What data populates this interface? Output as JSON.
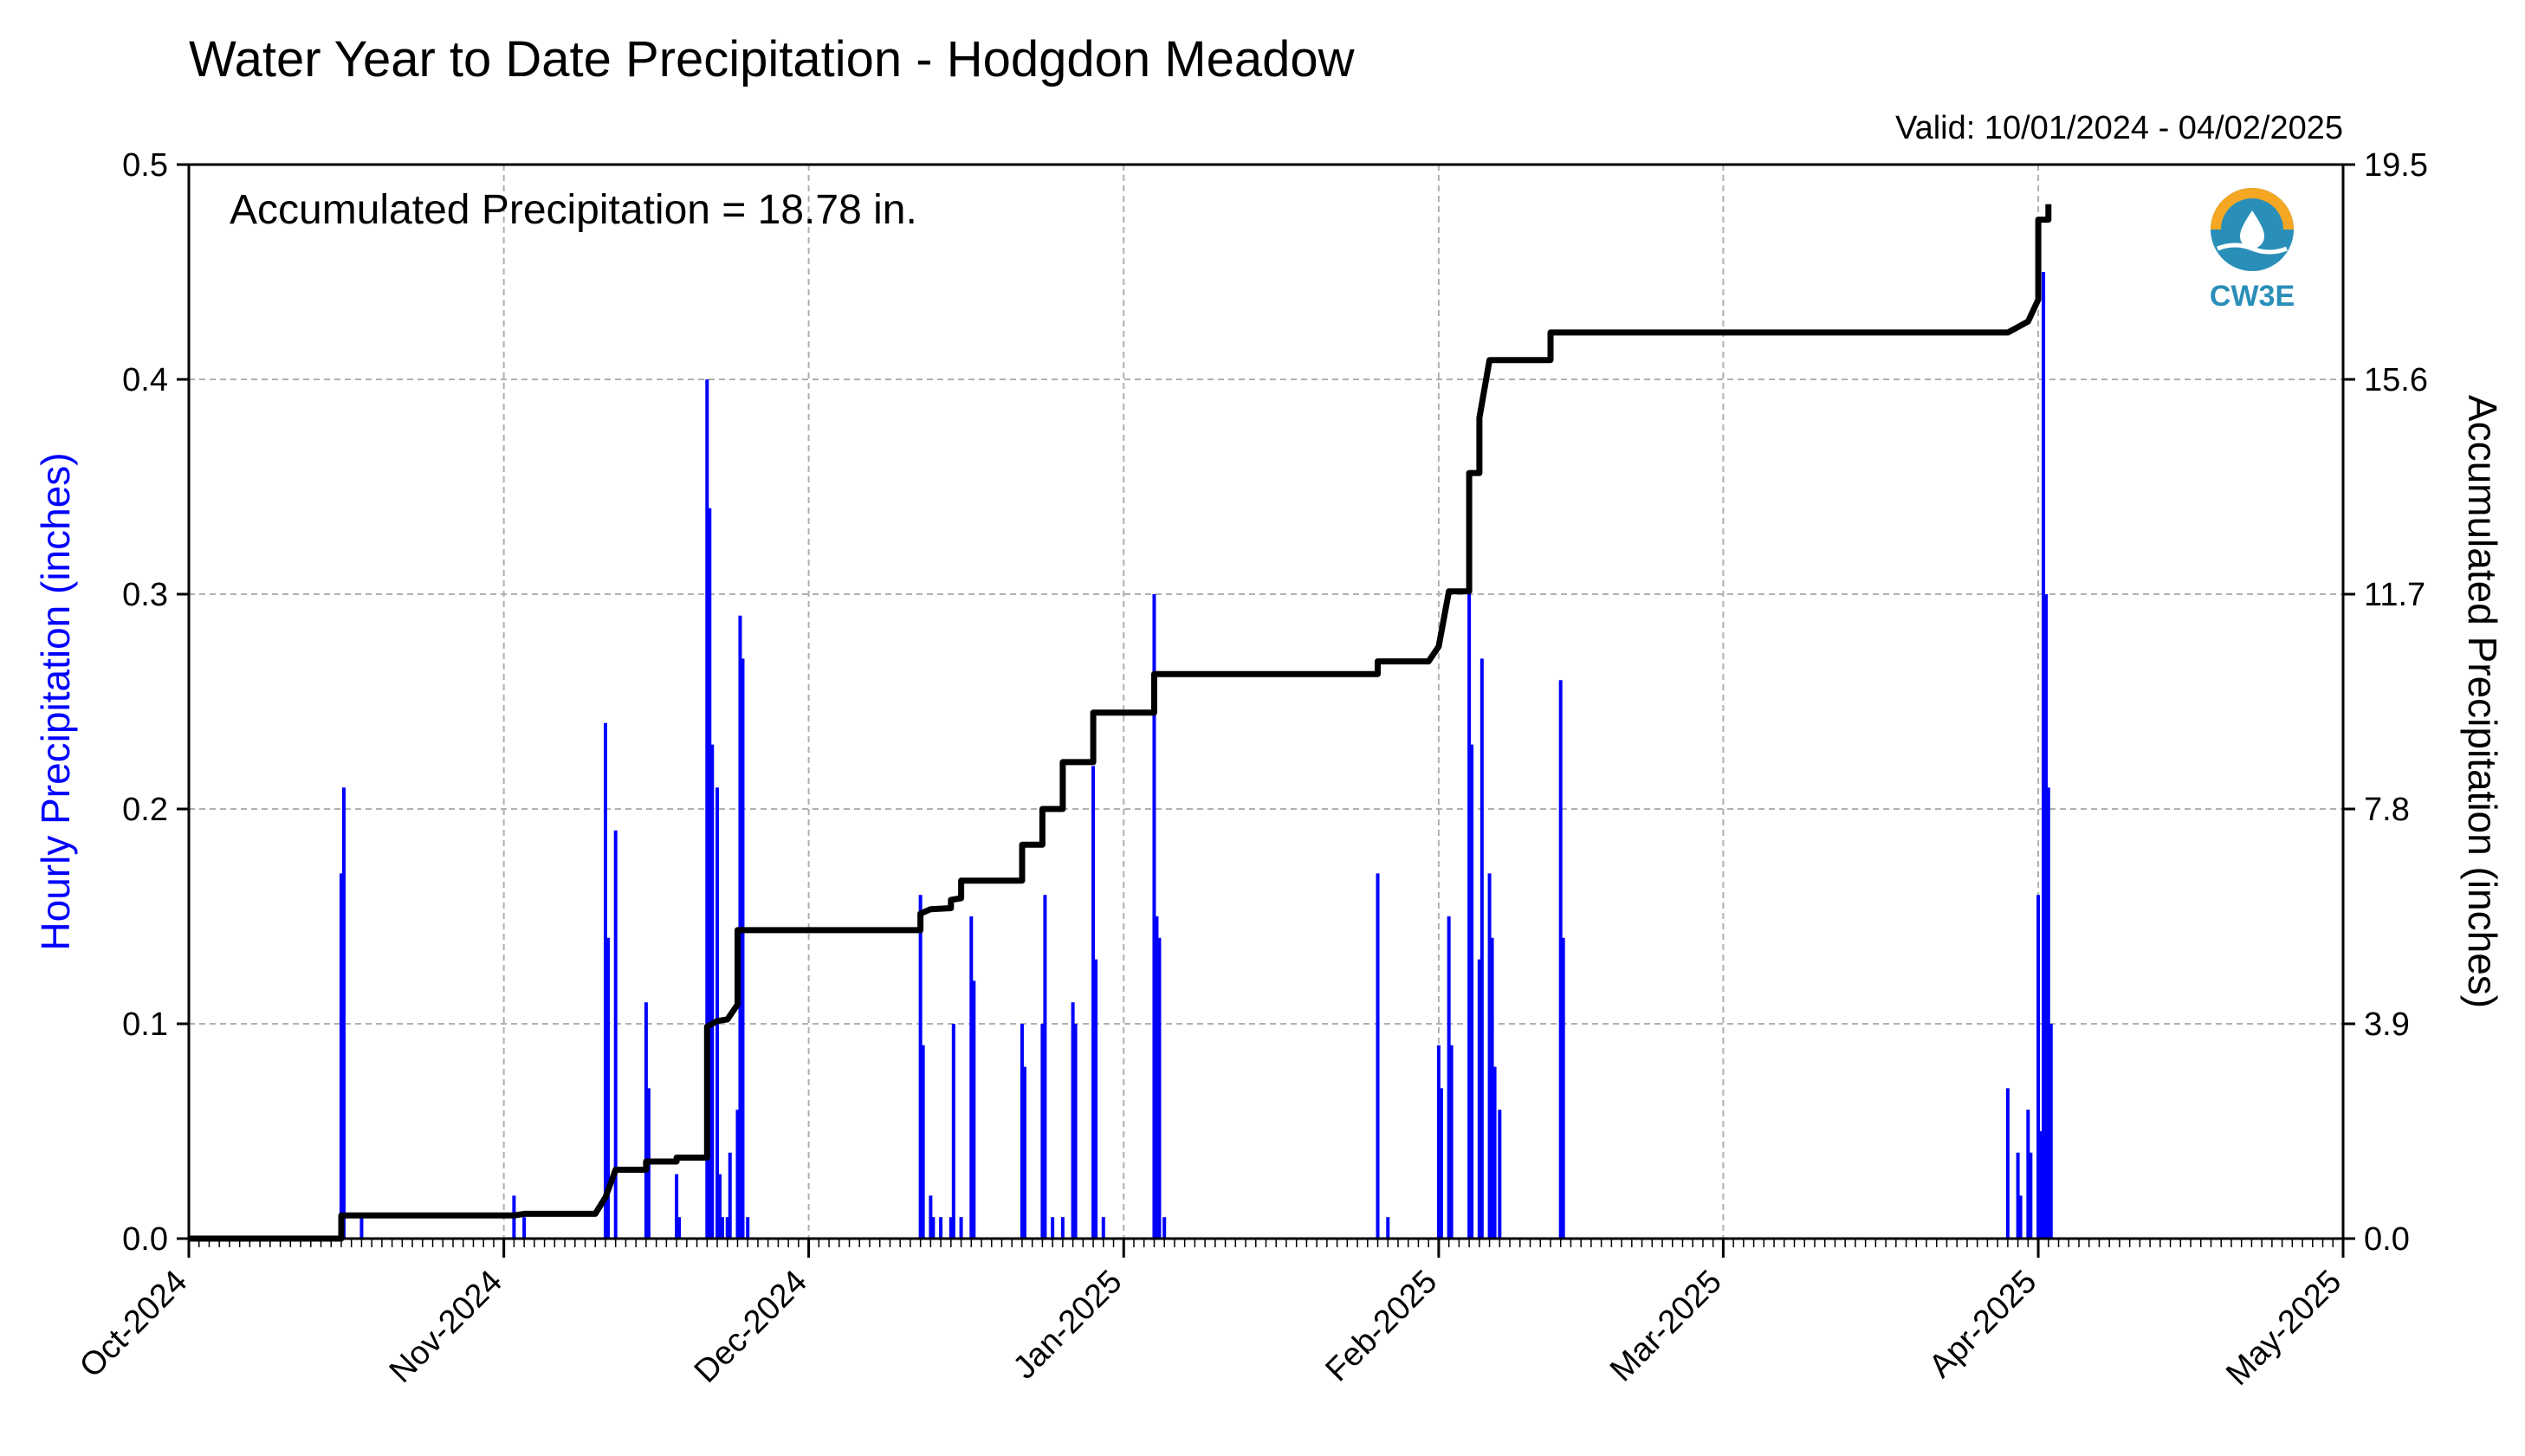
{
  "title": "Water Year to Date Precipitation - Hodgdon Meadow",
  "valid_label": "Valid: 10/01/2024 - 04/02/2025",
  "annotation": "Accumulated Precipitation = 18.78 in.",
  "logo": {
    "text": "CW3E",
    "icon": "cw3e-water-drop-logo-icon"
  },
  "colors": {
    "hourly": "#0000ff",
    "accumulated": "#000000",
    "grid": "#b0b0b0",
    "logo_orange": "#f5a623",
    "logo_blue": "#2a8fb8"
  },
  "chart_data": {
    "type": "bar",
    "x_type": "date",
    "xlim": [
      "2024-10-01",
      "2025-05-01"
    ],
    "x_tick_labels": [
      "Oct-2024",
      "Nov-2024",
      "Dec-2024",
      "Jan-2025",
      "Feb-2025",
      "Mar-2025",
      "Apr-2025",
      "May-2025"
    ],
    "x_tick_dates": [
      "2024-10-01",
      "2024-11-01",
      "2024-12-01",
      "2025-01-01",
      "2025-02-01",
      "2025-03-01",
      "2025-04-01",
      "2025-05-01"
    ],
    "ylabel_left": "Hourly Precipitation (inches)",
    "ylim_left": [
      0,
      0.5
    ],
    "yticks_left": [
      "0.0",
      "0.1",
      "0.2",
      "0.3",
      "0.4",
      "0.5"
    ],
    "ylabel_right": "Accumulated Precipitation (inches)",
    "ylim_right": [
      0,
      19.5
    ],
    "yticks_right": [
      "0.0",
      "3.9",
      "7.8",
      "11.7",
      "15.6",
      "19.5"
    ],
    "grid": true,
    "series": [
      {
        "name": "Hourly Precipitation",
        "type": "bar",
        "points": [
          [
            "2024-10-16",
            0.17
          ],
          [
            "2024-10-16",
            0.21
          ],
          [
            "2024-10-18",
            0.01
          ],
          [
            "2024-11-02",
            0.02
          ],
          [
            "2024-11-03",
            0.01
          ],
          [
            "2024-11-11",
            0.24
          ],
          [
            "2024-11-11",
            0.14
          ],
          [
            "2024-11-12",
            0.19
          ],
          [
            "2024-11-15",
            0.11
          ],
          [
            "2024-11-15",
            0.07
          ],
          [
            "2024-11-18",
            0.03
          ],
          [
            "2024-11-18",
            0.01
          ],
          [
            "2024-11-21",
            0.4
          ],
          [
            "2024-11-21",
            0.34
          ],
          [
            "2024-11-21",
            0.23
          ],
          [
            "2024-11-22",
            0.21
          ],
          [
            "2024-11-22",
            0.03
          ],
          [
            "2024-11-22",
            0.01
          ],
          [
            "2024-11-23",
            0.01
          ],
          [
            "2024-11-23",
            0.04
          ],
          [
            "2024-11-24",
            0.06
          ],
          [
            "2024-11-24",
            0.29
          ],
          [
            "2024-11-24",
            0.27
          ],
          [
            "2024-11-25",
            0.01
          ],
          [
            "2024-12-12",
            0.16
          ],
          [
            "2024-12-12",
            0.09
          ],
          [
            "2024-12-13",
            0.02
          ],
          [
            "2024-12-13",
            0.01
          ],
          [
            "2024-12-14",
            0.01
          ],
          [
            "2024-12-15",
            0.01
          ],
          [
            "2024-12-15",
            0.1
          ],
          [
            "2024-12-16",
            0.01
          ],
          [
            "2024-12-17",
            0.15
          ],
          [
            "2024-12-17",
            0.12
          ],
          [
            "2024-12-22",
            0.1
          ],
          [
            "2024-12-22",
            0.08
          ],
          [
            "2024-12-24",
            0.1
          ],
          [
            "2024-12-24",
            0.16
          ],
          [
            "2024-12-25",
            0.01
          ],
          [
            "2024-12-26",
            0.01
          ],
          [
            "2024-12-27",
            0.11
          ],
          [
            "2024-12-27",
            0.1
          ],
          [
            "2024-12-29",
            0.22
          ],
          [
            "2024-12-29",
            0.13
          ],
          [
            "2024-12-30",
            0.01
          ],
          [
            "2025-01-04",
            0.3
          ],
          [
            "2025-01-04",
            0.15
          ],
          [
            "2025-01-04",
            0.14
          ],
          [
            "2025-01-05",
            0.01
          ],
          [
            "2025-01-26",
            0.17
          ],
          [
            "2025-01-27",
            0.01
          ],
          [
            "2025-02-01",
            0.09
          ],
          [
            "2025-02-01",
            0.07
          ],
          [
            "2025-02-02",
            0.15
          ],
          [
            "2025-02-02",
            0.09
          ],
          [
            "2025-02-04",
            0.3
          ],
          [
            "2025-02-04",
            0.23
          ],
          [
            "2025-02-05",
            0.13
          ],
          [
            "2025-02-05",
            0.27
          ],
          [
            "2025-02-06",
            0.17
          ],
          [
            "2025-02-06",
            0.14
          ],
          [
            "2025-02-06",
            0.08
          ],
          [
            "2025-02-07",
            0.06
          ],
          [
            "2025-02-13",
            0.26
          ],
          [
            "2025-02-13",
            0.14
          ],
          [
            "2025-03-29",
            0.07
          ],
          [
            "2025-03-30",
            0.04
          ],
          [
            "2025-03-30",
            0.02
          ],
          [
            "2025-03-31",
            0.06
          ],
          [
            "2025-03-31",
            0.04
          ],
          [
            "2025-04-01",
            0.16
          ],
          [
            "2025-04-01",
            0.05
          ],
          [
            "2025-04-01",
            0.45
          ],
          [
            "2025-04-01",
            0.3
          ],
          [
            "2025-04-02",
            0.21
          ],
          [
            "2025-04-02",
            0.1
          ]
        ]
      },
      {
        "name": "Accumulated Precipitation",
        "type": "line",
        "axis": "right",
        "points": [
          [
            "2024-10-01",
            0.0
          ],
          [
            "2024-10-16",
            0.0
          ],
          [
            "2024-10-16",
            0.38
          ],
          [
            "2024-10-16",
            0.42
          ],
          [
            "2024-11-02",
            0.42
          ],
          [
            "2024-11-03",
            0.45
          ],
          [
            "2024-11-10",
            0.45
          ],
          [
            "2024-11-11",
            0.75
          ],
          [
            "2024-11-12",
            1.25
          ],
          [
            "2024-11-15",
            1.25
          ],
          [
            "2024-11-15",
            1.4
          ],
          [
            "2024-11-18",
            1.4
          ],
          [
            "2024-11-18",
            1.47
          ],
          [
            "2024-11-21",
            1.47
          ],
          [
            "2024-11-21",
            2.65
          ],
          [
            "2024-11-21",
            3.85
          ],
          [
            "2024-11-22",
            3.95
          ],
          [
            "2024-11-23",
            3.98
          ],
          [
            "2024-11-24",
            4.25
          ],
          [
            "2024-11-24",
            5.6
          ],
          [
            "2024-12-12",
            5.6
          ],
          [
            "2024-12-12",
            5.9
          ],
          [
            "2024-12-13",
            5.98
          ],
          [
            "2024-12-15",
            6.0
          ],
          [
            "2024-12-15",
            6.15
          ],
          [
            "2024-12-16",
            6.18
          ],
          [
            "2024-12-16",
            6.5
          ],
          [
            "2024-12-22",
            6.5
          ],
          [
            "2024-12-22",
            7.15
          ],
          [
            "2024-12-24",
            7.15
          ],
          [
            "2024-12-24",
            7.8
          ],
          [
            "2024-12-26",
            7.8
          ],
          [
            "2024-12-26",
            8.65
          ],
          [
            "2024-12-29",
            8.65
          ],
          [
            "2024-12-29",
            9.55
          ],
          [
            "2025-01-04",
            9.55
          ],
          [
            "2025-01-04",
            10.25
          ],
          [
            "2025-01-26",
            10.25
          ],
          [
            "2025-01-26",
            10.48
          ],
          [
            "2025-01-31",
            10.48
          ],
          [
            "2025-02-01",
            10.75
          ],
          [
            "2025-02-02",
            11.75
          ],
          [
            "2025-02-04",
            11.75
          ],
          [
            "2025-02-04",
            13.9
          ],
          [
            "2025-02-05",
            13.9
          ],
          [
            "2025-02-05",
            14.9
          ],
          [
            "2025-02-06",
            15.95
          ],
          [
            "2025-02-12",
            15.95
          ],
          [
            "2025-02-12",
            16.45
          ],
          [
            "2025-03-29",
            16.45
          ],
          [
            "2025-03-30",
            16.55
          ],
          [
            "2025-03-31",
            16.65
          ],
          [
            "2025-04-01",
            17.05
          ],
          [
            "2025-04-01",
            18.0
          ],
          [
            "2025-04-01",
            18.5
          ],
          [
            "2025-04-02",
            18.5
          ],
          [
            "2025-04-02",
            18.78
          ]
        ]
      }
    ]
  }
}
